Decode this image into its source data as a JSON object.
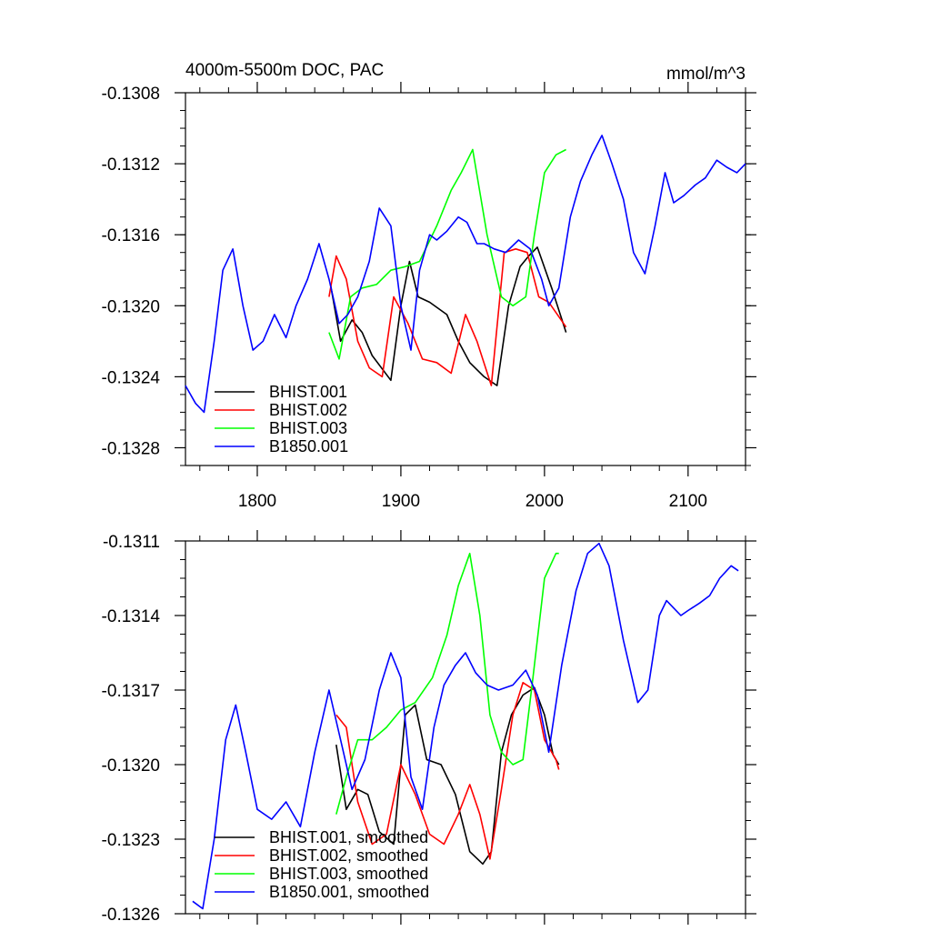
{
  "chart_data": [
    {
      "type": "line",
      "title": "4000m-5500m DOC, PAC",
      "units": "mmol/m^3",
      "xlim": [
        1750,
        2140
      ],
      "ylim": [
        -0.1329,
        -0.1308
      ],
      "xticks": [
        "1800",
        "1900",
        "2000",
        "2100"
      ],
      "yticks": [
        "-0.1308",
        "-0.1312",
        "-0.1316",
        "-0.1320",
        "-0.1324",
        "-0.1328"
      ],
      "ytick_values": [
        -0.1308,
        -0.1312,
        -0.1316,
        -0.132,
        -0.1324,
        -0.1328
      ],
      "series": [
        {
          "name": "BHIST.001",
          "color": "#000000",
          "x": [
            1851,
            1858,
            1866,
            1873,
            1880,
            1893,
            1900,
            1906,
            1912,
            1920,
            1932,
            1940,
            1948,
            1958,
            1967,
            1975,
            1983,
            1989,
            1995,
            2005,
            2015
          ],
          "y": [
            -0.13188,
            -0.1322,
            -0.13208,
            -0.13215,
            -0.13228,
            -0.13242,
            -0.132,
            -0.13175,
            -0.13195,
            -0.13198,
            -0.13205,
            -0.1322,
            -0.13232,
            -0.1324,
            -0.13245,
            -0.132,
            -0.13178,
            -0.13172,
            -0.13167,
            -0.1319,
            -0.13215
          ]
        },
        {
          "name": "BHIST.002",
          "color": "#ff0000",
          "x": [
            1850,
            1855,
            1862,
            1870,
            1878,
            1887,
            1895,
            1905,
            1915,
            1925,
            1935,
            1945,
            1953,
            1963,
            1972,
            1980,
            1988,
            1996,
            2003,
            2015
          ],
          "y": [
            -0.13195,
            -0.13172,
            -0.13185,
            -0.1322,
            -0.13235,
            -0.1324,
            -0.13195,
            -0.1321,
            -0.1323,
            -0.13232,
            -0.13238,
            -0.13205,
            -0.1322,
            -0.13245,
            -0.1317,
            -0.13168,
            -0.1317,
            -0.13195,
            -0.13198,
            -0.13212
          ]
        },
        {
          "name": "BHIST.003",
          "color": "#00ff00",
          "x": [
            1850,
            1857,
            1865,
            1873,
            1883,
            1893,
            1903,
            1913,
            1925,
            1935,
            1942,
            1950,
            1960,
            1970,
            1978,
            1987,
            1993,
            2000,
            2008,
            2015
          ],
          "y": [
            -0.13215,
            -0.1323,
            -0.13195,
            -0.1319,
            -0.13188,
            -0.1318,
            -0.13178,
            -0.13175,
            -0.13155,
            -0.13135,
            -0.13125,
            -0.13112,
            -0.1316,
            -0.13195,
            -0.132,
            -0.13195,
            -0.1316,
            -0.13125,
            -0.13115,
            -0.13112
          ]
        },
        {
          "name": "B1850.001",
          "color": "#0000ff",
          "x": [
            1750,
            1757,
            1763,
            1770,
            1776,
            1783,
            1790,
            1797,
            1804,
            1812,
            1820,
            1827,
            1835,
            1843,
            1850,
            1857,
            1863,
            1870,
            1878,
            1885,
            1893,
            1900,
            1907,
            1913,
            1920,
            1925,
            1932,
            1940,
            1946,
            1953,
            1958,
            1965,
            1973,
            1982,
            1990,
            1998,
            2003,
            2010,
            2018,
            2025,
            2033,
            2040,
            2047,
            2055,
            2062,
            2070,
            2077,
            2084,
            2090,
            2097,
            2105,
            2112,
            2120,
            2127,
            2134,
            2140
          ],
          "y": [
            -0.13245,
            -0.13255,
            -0.1326,
            -0.1322,
            -0.1318,
            -0.13168,
            -0.132,
            -0.13225,
            -0.1322,
            -0.13205,
            -0.13218,
            -0.132,
            -0.13185,
            -0.13165,
            -0.13185,
            -0.1321,
            -0.13205,
            -0.13195,
            -0.13175,
            -0.13145,
            -0.13155,
            -0.132,
            -0.13225,
            -0.1318,
            -0.1316,
            -0.13163,
            -0.13158,
            -0.1315,
            -0.13153,
            -0.13165,
            -0.13165,
            -0.13168,
            -0.1317,
            -0.13163,
            -0.13168,
            -0.13185,
            -0.132,
            -0.1319,
            -0.1315,
            -0.1313,
            -0.13115,
            -0.13104,
            -0.1312,
            -0.1314,
            -0.1317,
            -0.13182,
            -0.13155,
            -0.13125,
            -0.13142,
            -0.13138,
            -0.13132,
            -0.13128,
            -0.13118,
            -0.13122,
            -0.13125,
            -0.1312
          ]
        }
      ]
    },
    {
      "type": "line",
      "title": "",
      "xlim": [
        1750,
        2140
      ],
      "ylim": [
        -0.1326,
        -0.1311
      ],
      "xticks": [
        "1800",
        "1900",
        "2000",
        "2100"
      ],
      "yticks": [
        "-0.1311",
        "-0.1314",
        "-0.1317",
        "-0.1320",
        "-0.1323",
        "-0.1326"
      ],
      "ytick_values": [
        -0.1311,
        -0.1314,
        -0.1317,
        -0.132,
        -0.1323,
        -0.1326
      ],
      "series": [
        {
          "name": "BHIST.001, smoothed",
          "color": "#000000",
          "x": [
            1855,
            1862,
            1870,
            1877,
            1885,
            1895,
            1903,
            1910,
            1918,
            1928,
            1938,
            1948,
            1957,
            1963,
            1970,
            1977,
            1985,
            1993,
            2000,
            2006,
            2010
          ],
          "y": [
            -0.13192,
            -0.13218,
            -0.1321,
            -0.13212,
            -0.13227,
            -0.13232,
            -0.1318,
            -0.13176,
            -0.13198,
            -0.132,
            -0.13212,
            -0.13235,
            -0.1324,
            -0.13235,
            -0.13195,
            -0.1318,
            -0.13172,
            -0.13169,
            -0.1318,
            -0.13196,
            -0.132
          ]
        },
        {
          "name": "BHIST.002, smoothed",
          "color": "#ff0000",
          "x": [
            1855,
            1862,
            1870,
            1880,
            1890,
            1900,
            1910,
            1920,
            1930,
            1940,
            1948,
            1955,
            1962,
            1970,
            1978,
            1985,
            1993,
            2000,
            2008,
            2010
          ],
          "y": [
            -0.1318,
            -0.13185,
            -0.13215,
            -0.13232,
            -0.13228,
            -0.132,
            -0.13212,
            -0.13228,
            -0.13232,
            -0.1322,
            -0.13208,
            -0.1322,
            -0.13238,
            -0.1321,
            -0.1318,
            -0.13167,
            -0.1317,
            -0.1319,
            -0.13198,
            -0.13202
          ]
        },
        {
          "name": "BHIST.003, smoothed",
          "color": "#00ff00",
          "x": [
            1855,
            1862,
            1870,
            1880,
            1890,
            1900,
            1910,
            1922,
            1932,
            1940,
            1948,
            1955,
            1962,
            1970,
            1978,
            1985,
            1992,
            2000,
            2008,
            2010
          ],
          "y": [
            -0.1322,
            -0.13205,
            -0.1319,
            -0.1319,
            -0.13185,
            -0.13178,
            -0.13175,
            -0.13165,
            -0.13148,
            -0.13128,
            -0.13115,
            -0.1314,
            -0.1318,
            -0.13195,
            -0.132,
            -0.13198,
            -0.13165,
            -0.13125,
            -0.13115,
            -0.13115
          ]
        },
        {
          "name": "B1850.001, smoothed",
          "color": "#0000ff",
          "x": [
            1755,
            1762,
            1770,
            1778,
            1785,
            1792,
            1800,
            1810,
            1820,
            1830,
            1840,
            1850,
            1858,
            1866,
            1875,
            1885,
            1893,
            1900,
            1907,
            1915,
            1923,
            1930,
            1938,
            1945,
            1952,
            1960,
            1968,
            1978,
            1987,
            1995,
            2003,
            2012,
            2022,
            2030,
            2038,
            2045,
            2055,
            2065,
            2072,
            2080,
            2085,
            2090,
            2095,
            2100,
            2108,
            2115,
            2122,
            2130,
            2135
          ],
          "y": [
            -0.13255,
            -0.13258,
            -0.1323,
            -0.1319,
            -0.13176,
            -0.13195,
            -0.13218,
            -0.13222,
            -0.13215,
            -0.13225,
            -0.13195,
            -0.1317,
            -0.1319,
            -0.1321,
            -0.13198,
            -0.1317,
            -0.13155,
            -0.13165,
            -0.13205,
            -0.13218,
            -0.13185,
            -0.13168,
            -0.1316,
            -0.13155,
            -0.13163,
            -0.13168,
            -0.1317,
            -0.13168,
            -0.13162,
            -0.13172,
            -0.13195,
            -0.1316,
            -0.1313,
            -0.13115,
            -0.13111,
            -0.1312,
            -0.1315,
            -0.13175,
            -0.1317,
            -0.1314,
            -0.13134,
            -0.13137,
            -0.1314,
            -0.13138,
            -0.13135,
            -0.13132,
            -0.13125,
            -0.1312,
            -0.13122
          ]
        }
      ]
    }
  ]
}
